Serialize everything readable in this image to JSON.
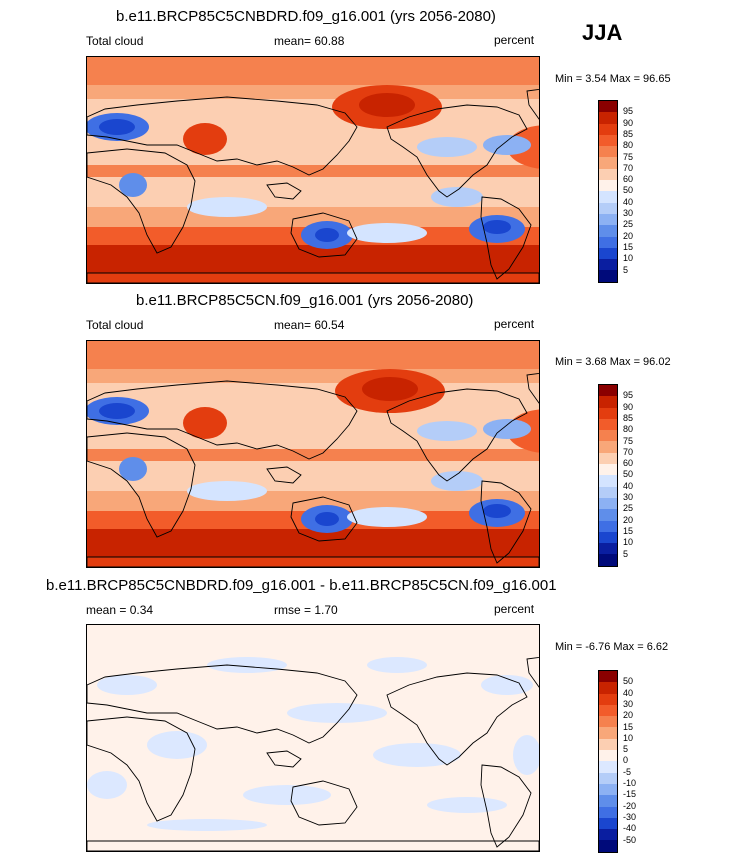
{
  "season": "JJA",
  "panels": [
    {
      "title": "b.e11.BRCP85C5CNBDRD.f09_g16.001 (yrs 2056-2080)",
      "left_label": "Total cloud",
      "center_label": "mean=  60.88",
      "right_label": "percent",
      "minmax": "Min =   3.54 Max =  96.65",
      "colorbar": {
        "labels": [
          "95",
          "90",
          "85",
          "80",
          "75",
          "70",
          "60",
          "50",
          "40",
          "30",
          "25",
          "20",
          "15",
          "10",
          "5"
        ],
        "colors": [
          "#8a0000",
          "#c82300",
          "#e33d0f",
          "#f25c2a",
          "#f5814e",
          "#f8a779",
          "#fccfb2",
          "#fff2ea",
          "#d4e4ff",
          "#b4cdf8",
          "#8cb1f3",
          "#5f8eea",
          "#3f6fe4",
          "#1a46cf",
          "#0a1ea0",
          "#000a7a"
        ]
      },
      "field_type": "cloud"
    },
    {
      "title": "b.e11.BRCP85C5CN.f09_g16.001 (yrs 2056-2080)",
      "left_label": "Total cloud",
      "center_label": "mean=  60.54",
      "right_label": "percent",
      "minmax": "Min =   3.68 Max =  96.02",
      "colorbar": {
        "labels": [
          "95",
          "90",
          "85",
          "80",
          "75",
          "70",
          "60",
          "50",
          "40",
          "30",
          "25",
          "20",
          "15",
          "10",
          "5"
        ],
        "colors": [
          "#8a0000",
          "#c82300",
          "#e33d0f",
          "#f25c2a",
          "#f5814e",
          "#f8a779",
          "#fccfb2",
          "#fff2ea",
          "#d4e4ff",
          "#b4cdf8",
          "#8cb1f3",
          "#5f8eea",
          "#3f6fe4",
          "#1a46cf",
          "#0a1ea0",
          "#000a7a"
        ]
      },
      "field_type": "cloud"
    },
    {
      "title": "b.e11.BRCP85C5CNBDRD.f09_g16.001 - b.e11.BRCP85C5CN.f09_g16.001",
      "left_label": "mean =   0.34",
      "center_label": "rmse =   1.70",
      "right_label": "percent",
      "minmax": "Min =  -6.76 Max =   6.62",
      "colorbar": {
        "labels": [
          "50",
          "40",
          "30",
          "20",
          "15",
          "10",
          "5",
          "0",
          "-5",
          "-10",
          "-15",
          "-20",
          "-30",
          "-40",
          "-50"
        ],
        "colors": [
          "#8a0000",
          "#c82300",
          "#e33d0f",
          "#f25c2a",
          "#f5814e",
          "#f8a779",
          "#fccfb2",
          "#fff2ea",
          "#dce8ff",
          "#b4cdf8",
          "#8cb1f3",
          "#5f8eea",
          "#3f6fe4",
          "#1a46cf",
          "#0a1ea0",
          "#000a7a"
        ]
      },
      "field_type": "diff"
    }
  ]
}
